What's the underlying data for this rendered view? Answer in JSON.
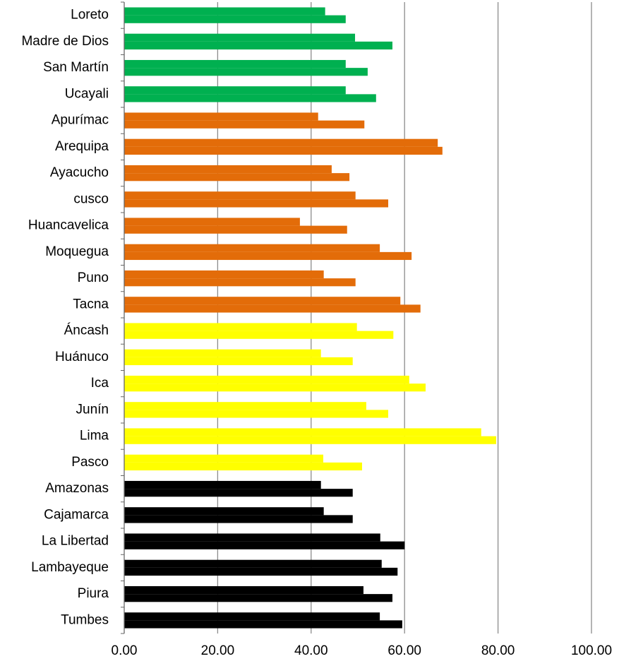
{
  "chart_data": {
    "type": "hbar",
    "categories": [
      "Loreto",
      "Madre de Dios",
      "San Martín",
      "Ucayali",
      "Apurímac",
      "Arequipa",
      "Ayacucho",
      "cusco",
      "Huancavelica",
      "Moquegua",
      "Puno",
      "Tacna",
      "Áncash",
      "Huánuco",
      "Ica",
      "Junín",
      "Lima",
      "Pasco",
      "Amazonas",
      "Cajamarca",
      "La Libertad",
      "Lambayeque",
      "Piura",
      "Tumbes"
    ],
    "colors": [
      "#00b050",
      "#00b050",
      "#00b050",
      "#00b050",
      "#e36c09",
      "#e36c09",
      "#e36c09",
      "#e36c09",
      "#e36c09",
      "#e36c09",
      "#e36c09",
      "#e36c09",
      "#ffff00",
      "#ffff00",
      "#ffff00",
      "#ffff00",
      "#ffff00",
      "#ffff00",
      "#000000",
      "#000000",
      "#000000",
      "#000000",
      "#000000",
      "#000000"
    ],
    "series": [
      {
        "values": [
          43.0,
          49.4,
          47.4,
          47.4,
          41.5,
          67.1,
          44.4,
          49.5,
          37.6,
          54.7,
          42.7,
          59.1,
          49.8,
          42.1,
          61.0,
          51.8,
          76.4,
          42.6,
          42.1,
          42.7,
          54.8,
          55.1,
          51.2,
          54.7
        ]
      },
      {
        "values": [
          47.4,
          57.4,
          52.1,
          53.9,
          51.4,
          68.1,
          48.2,
          56.5,
          47.7,
          61.5,
          49.5,
          63.4,
          57.6,
          48.9,
          64.5,
          56.5,
          79.6,
          50.9,
          48.9,
          48.9,
          60.0,
          58.5,
          57.4,
          59.5
        ]
      }
    ],
    "xlim": [
      0,
      100
    ],
    "xticks": [
      {
        "value": 0,
        "label": "0.00"
      },
      {
        "value": 20,
        "label": "20.00"
      },
      {
        "value": 40,
        "label": "40.00"
      },
      {
        "value": 60,
        "label": "60.00"
      },
      {
        "value": 80,
        "label": "80.00"
      },
      {
        "value": 100,
        "label": "100.00"
      }
    ],
    "grid": true
  }
}
